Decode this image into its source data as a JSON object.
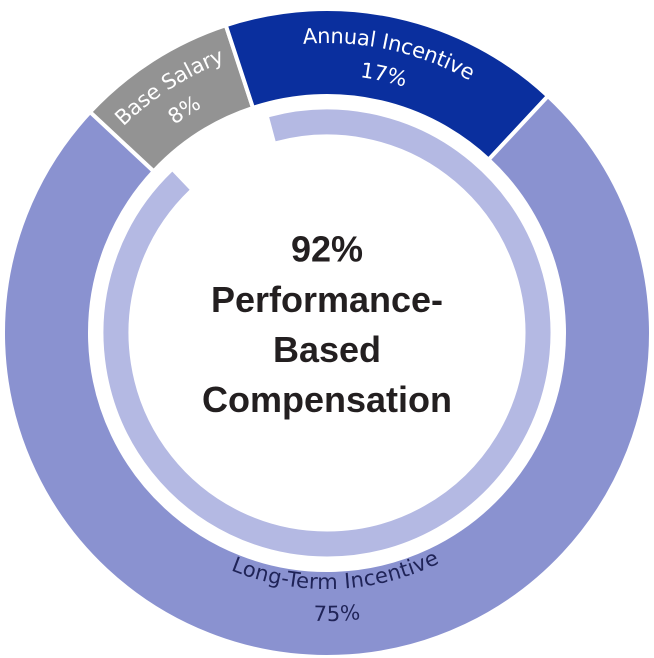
{
  "chart_data": {
    "type": "donut",
    "categories": [
      "Base Salary",
      "Annual Incentive",
      "Long-Term Incentive"
    ],
    "values": [
      8,
      17,
      75
    ],
    "value_labels": [
      "8%",
      "17%",
      "75%"
    ],
    "colors": [
      "#939393",
      "#0a2f9e",
      "#8a92d0"
    ],
    "label_colors": [
      "#ffffff",
      "#ffffff",
      "#1f2357"
    ],
    "inner_ring": {
      "value": 92,
      "value_label": "92%",
      "label": "Performance-Based Compensation",
      "color": "#b4b9e3"
    }
  }
}
